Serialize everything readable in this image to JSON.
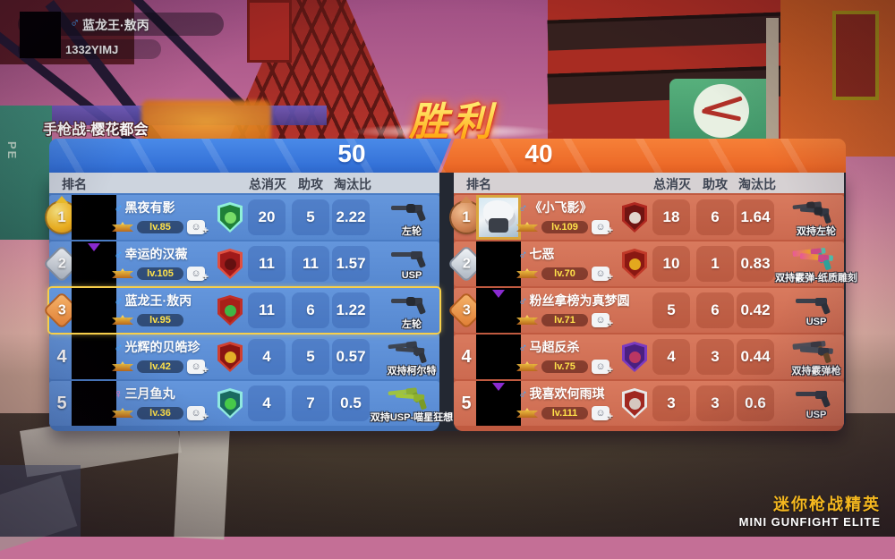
{
  "player_card": {
    "gender": "male",
    "gender_symbol": "♂",
    "name": "蓝龙王·敖丙",
    "id": "1332YIMJ"
  },
  "mode_label": "手枪战-樱花都会",
  "result_title": "胜利",
  "score_bar": {
    "left_score": "50",
    "right_score": "40",
    "left_color": "#2f6cd4",
    "right_color": "#ea6424"
  },
  "table_header": {
    "rank": "排名",
    "kills": "总消灭",
    "assists": "助攻",
    "ratio": "淘汰比"
  },
  "brand": {
    "cn": "迷你枪战精英",
    "en": "MINI GUNFIGHT ELITE"
  },
  "left_table": {
    "team_color": "#4a7cc4",
    "rows": [
      {
        "rank": "1",
        "rank_style": "gold-medal",
        "avatar": "black",
        "gender": "male",
        "gender_symbol": "♂",
        "name": "黑夜有影",
        "level": "lv.85",
        "has_add_friend": true,
        "highlighted": false,
        "badge": {
          "border": "#8ff0d8",
          "bg": "#1f8038",
          "glyph": "#7de06a",
          "label": "green-dragon-badge"
        },
        "kills": "20",
        "assists": "5",
        "ratio": "2.22",
        "weapon_label": "左轮",
        "weapon_icon": "revolver"
      },
      {
        "rank": "2",
        "rank_style": "silver-diamond",
        "avatar": "black-accent",
        "gender": "male",
        "gender_symbol": "♂",
        "name": "幸运的汉薇",
        "level": "lv.105",
        "has_add_friend": true,
        "highlighted": false,
        "badge": {
          "border": "#e05040",
          "bg": "#a01a1a",
          "glyph": "#601010",
          "label": "red-owl-badge"
        },
        "kills": "11",
        "assists": "11",
        "ratio": "1.57",
        "weapon_label": "USP",
        "weapon_icon": "pistol"
      },
      {
        "rank": "3",
        "rank_style": "orange-diamond",
        "avatar": "black",
        "gender": "male",
        "gender_symbol": "♂",
        "name": "蓝龙王·敖丙",
        "level": "lv.95",
        "has_add_friend": false,
        "highlighted": true,
        "badge": {
          "border": "#c03028",
          "bg": "#a82018",
          "glyph": "#3ac048",
          "label": "red-green-circle-badge"
        },
        "kills": "11",
        "assists": "6",
        "ratio": "1.22",
        "weapon_label": "左轮",
        "weapon_icon": "revolver"
      },
      {
        "rank": "4",
        "rank_style": "text",
        "avatar": "black",
        "gender": "male",
        "gender_symbol": "♂",
        "name": "光辉的贝皓珍",
        "level": "lv.42",
        "has_add_friend": true,
        "highlighted": false,
        "badge": {
          "border": "#d04030",
          "bg": "#8a1512",
          "glyph": "#e8b82a",
          "label": "red-gold-badge"
        },
        "kills": "4",
        "assists": "5",
        "ratio": "0.57",
        "weapon_label": "双持柯尔特",
        "weapon_icon": "dual-pistol"
      },
      {
        "rank": "5",
        "rank_style": "text",
        "avatar": "black",
        "gender": "female",
        "gender_symbol": "♀",
        "name": "三月鱼丸",
        "level": "lv.36",
        "has_add_friend": true,
        "highlighted": false,
        "badge": {
          "border": "#8fe8e0",
          "bg": "#1a6a60",
          "glyph": "#4ad048",
          "label": "cyan-eagle-badge"
        },
        "kills": "4",
        "assists": "7",
        "ratio": "0.5",
        "weapon_label": "双持USP-喵星狂想",
        "weapon_icon": "dual-pistol-green"
      }
    ]
  },
  "right_table": {
    "team_color": "#c05a40",
    "rows": [
      {
        "rank": "1",
        "rank_style": "bronze-medal",
        "avatar": "portrait",
        "gender": "male",
        "gender_symbol": "♂",
        "name": "《小飞影》",
        "level": "lv.109",
        "has_add_friend": true,
        "highlighted": false,
        "badge": {
          "border": "#b02820",
          "bg": "#701512",
          "glyph": "#e8e0d8",
          "label": "darkred-trident-badge"
        },
        "kills": "18",
        "assists": "6",
        "ratio": "1.64",
        "weapon_label": "双持左轮",
        "weapon_icon": "dual-revolver"
      },
      {
        "rank": "2",
        "rank_style": "silver-diamond",
        "avatar": "black",
        "gender": "male",
        "gender_symbol": "♂",
        "name": "七恶",
        "level": "lv.70",
        "has_add_friend": true,
        "highlighted": false,
        "badge": {
          "border": "#c03828",
          "bg": "#8a1812",
          "glyph": "#e8b020",
          "label": "red-target-badge"
        },
        "kills": "10",
        "assists": "1",
        "ratio": "0.83",
        "weapon_label": "双持霰弹-纸质雕刻",
        "weapon_icon": "dual-shotgun-colorful"
      },
      {
        "rank": "3",
        "rank_style": "orange-diamond",
        "avatar": "black-accent",
        "gender": "male",
        "gender_symbol": "♂",
        "name": "粉丝拿榜为真梦圆",
        "level": "lv.71",
        "has_add_friend": true,
        "highlighted": false,
        "badge": null,
        "kills": "5",
        "assists": "6",
        "ratio": "0.42",
        "weapon_label": "USP",
        "weapon_icon": "pistol"
      },
      {
        "rank": "4",
        "rank_style": "text",
        "avatar": "black",
        "gender": "male",
        "gender_symbol": "♂",
        "name": "马超反杀",
        "level": "lv.75",
        "has_add_friend": true,
        "highlighted": false,
        "badge": {
          "border": "#7a3ac0",
          "bg": "#4a2080",
          "glyph": "#c03860",
          "label": "purple-octopus-badge"
        },
        "kills": "4",
        "assists": "3",
        "ratio": "0.44",
        "weapon_label": "双持霰弹枪",
        "weapon_icon": "dual-shotgun"
      },
      {
        "rank": "5",
        "rank_style": "text",
        "avatar": "black-accent",
        "gender": "male",
        "gender_symbol": "♂",
        "name": "我喜欢何雨琪",
        "level": "lv.111",
        "has_add_friend": true,
        "highlighted": false,
        "badge": {
          "border": "#e8e8e8",
          "bg": "#a02820",
          "glyph": "#d8d0c8",
          "label": "white-mask-badge"
        },
        "kills": "3",
        "assists": "3",
        "ratio": "0.6",
        "weapon_label": "USP",
        "weapon_icon": "pistol"
      }
    ]
  }
}
